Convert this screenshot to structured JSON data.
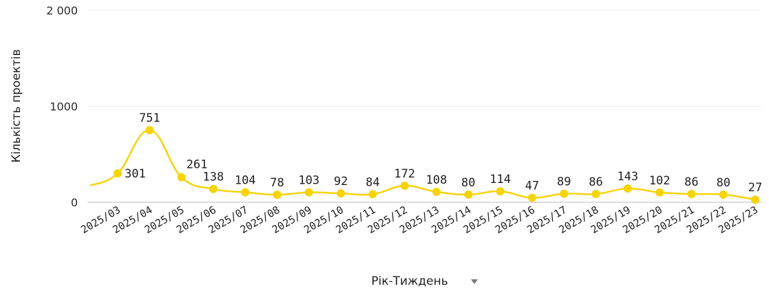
{
  "chart_data": {
    "type": "line",
    "xlabel": "Рік-Тиждень",
    "ylabel": "Кількість проектів",
    "categories": [
      "2025/03",
      "2025/04",
      "2025/05",
      "2025/06",
      "2025/07",
      "2025/08",
      "2025/09",
      "2025/10",
      "2025/11",
      "2025/12",
      "2025/13",
      "2025/14",
      "2025/15",
      "2025/16",
      "2025/17",
      "2025/18",
      "2025/19",
      "2025/20",
      "2025/21",
      "2025/22",
      "2025/23"
    ],
    "series": [
      {
        "values": [
          301,
          751,
          261,
          138,
          104,
          78,
          103,
          92,
          84,
          172,
          108,
          80,
          114,
          47,
          89,
          86,
          143,
          102,
          86,
          80,
          27
        ]
      }
    ],
    "y_ticks": [
      "0",
      "1000",
      "2 000"
    ],
    "ylim": [
      0,
      2000
    ],
    "grid": true,
    "legend": "none",
    "line_color": "#f6d40a",
    "sort_icon": "sort-down-triangle-icon"
  }
}
